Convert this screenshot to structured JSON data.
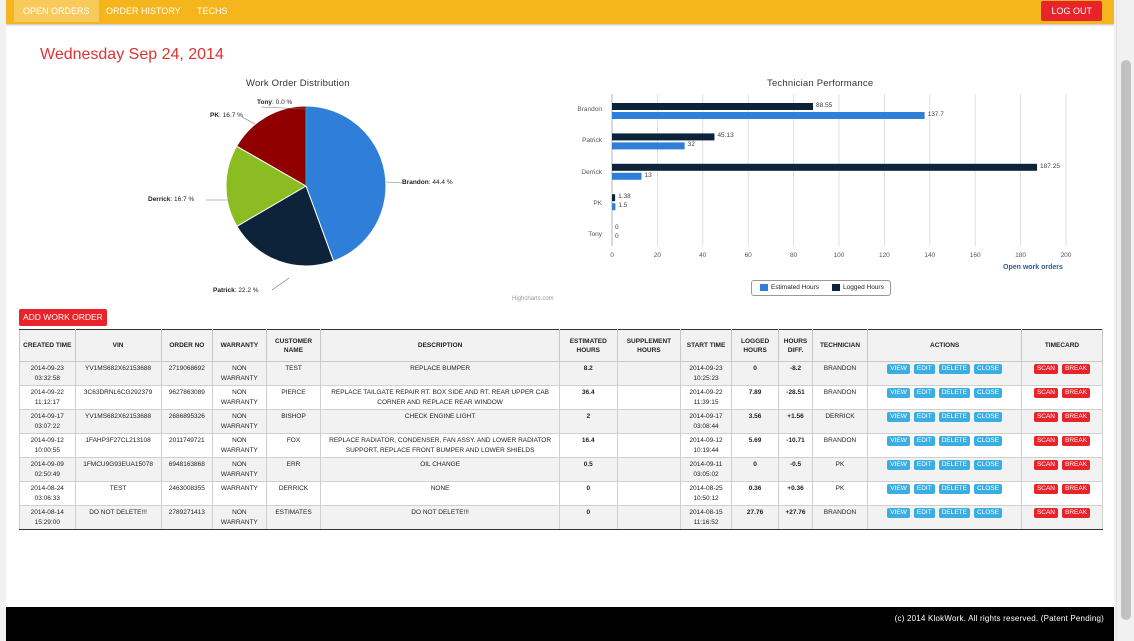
{
  "nav": {
    "tabs": [
      "OPEN ORDERS",
      "ORDER HISTORY",
      "TECHS"
    ],
    "logout": "LOG OUT"
  },
  "date": "Wednesday Sep 24, 2014",
  "pie": {
    "title": "Work Order Distribution",
    "slices": [
      {
        "name": "Brandon",
        "pct": 44.4,
        "label": "44.4 %",
        "color": "#2f7ed8"
      },
      {
        "name": "Patrick",
        "pct": 22.2,
        "label": "22.2 %",
        "color": "#0d233a"
      },
      {
        "name": "Derrick",
        "pct": 16.7,
        "label": "16.7 %",
        "color": "#8bbc21"
      },
      {
        "name": "PK",
        "pct": 16.7,
        "label": "16.7 %",
        "color": "#910000"
      },
      {
        "name": "Tony",
        "pct": 0.0,
        "label": "0.0 %",
        "color": "#1aadce"
      }
    ]
  },
  "chart_data": {
    "type": "bar",
    "title": "Technician Performance",
    "categories": [
      "Brandon",
      "Patrick",
      "Derrick",
      "PK",
      "Tony"
    ],
    "series": [
      {
        "name": "Logged Hours",
        "color": "#0d233a",
        "values": [
          88.55,
          45.13,
          187.25,
          1.38,
          0
        ]
      },
      {
        "name": "Estimated Hours",
        "color": "#2f7ed8",
        "values": [
          137.7,
          32,
          13,
          1.5,
          0
        ]
      }
    ],
    "value_labels": [
      [
        "88.55",
        "45.13",
        "187.25",
        "1.38",
        "0"
      ],
      [
        "137.7",
        "32",
        "13",
        "1.5",
        "0"
      ]
    ],
    "xticks": [
      "0",
      "20",
      "40",
      "60",
      "80",
      "100",
      "120",
      "140",
      "160",
      "180",
      "200"
    ],
    "xlim": [
      0,
      200
    ],
    "grid": true,
    "legend": "bottom-center",
    "legend_items": [
      "Estimated Hours",
      "Logged Hours"
    ],
    "subtitle_link": "Open work orders"
  },
  "credits": "Highcharts.com",
  "add_button": "ADD WORK ORDER",
  "table": {
    "headers": [
      "CREATED TIME",
      "VIN",
      "ORDER NO",
      "WARRANTY",
      "CUSTOMER NAME",
      "DESCRIPTION",
      "ESTIMATED HOURS",
      "SUPPLEMENT HOURS",
      "START TIME",
      "LOGGED HOURS",
      "HOURS DIFF.",
      "TECHNICIAN",
      "ACTIONS",
      "TIMECARD"
    ],
    "actions": [
      "VIEW",
      "EDIT",
      "DELETE",
      "CLOSE"
    ],
    "timecard": [
      "SCAN",
      "BREAK"
    ],
    "rows": [
      {
        "created": "2014-09-23 03:32:58",
        "vin": "YV1MS682X62153688",
        "order": "2719068692",
        "warranty": "NON WARRANTY",
        "customer": "TEST",
        "desc": "REPLACE BUMPER",
        "est": "8.2",
        "supp": "",
        "start": "2014-09-23 10:25:23",
        "logged": "0",
        "diff": "-8.2",
        "diff_type": "neg",
        "tech": "BRANDON"
      },
      {
        "created": "2014-09-22 11:12:17",
        "vin": "3C63DRNL6CG292379",
        "order": "9627863089",
        "warranty": "NON WARRANTY",
        "customer": "PIERCE",
        "desc": "REPLACE TAILGATE REPAIR RT. BOX SIDE AND RT. REAR UPPER CAB CORNER AND REPLACE REAR WINDOW",
        "est": "36.4",
        "supp": "",
        "start": "2014-09-22 11:39:15",
        "logged": "7.89",
        "diff": "-28.51",
        "diff_type": "neg",
        "tech": "BRANDON"
      },
      {
        "created": "2014-09-17 03:07:22",
        "vin": "YV1MS682X62153688",
        "order": "2686895326",
        "warranty": "NON WARRANTY",
        "customer": "BISHOP",
        "desc": "CHECK ENGINE LIGHT",
        "est": "2",
        "supp": "",
        "start": "2014-09-17 03:08:44",
        "logged": "3.56",
        "diff": "+1.56",
        "diff_type": "pos",
        "tech": "DERRICK"
      },
      {
        "created": "2014-09-12 10:00:55",
        "vin": "1FAHP3F27CL213108",
        "order": "2011749721",
        "warranty": "NON WARRANTY",
        "customer": "FOX",
        "desc": "REPLACE RADIATOR, CONDENSER, FAN ASSY. AND LOWER RADIATOR SUPPORT, REPLACE FRONT BUMPER AND LOWER SHIELDS",
        "est": "16.4",
        "supp": "",
        "start": "2014-09-12 10:19:44",
        "logged": "5.69",
        "diff": "-10.71",
        "diff_type": "neg",
        "tech": "BRANDON"
      },
      {
        "created": "2014-09-09 02:50:49",
        "vin": "1FMCU9G93EUA15078",
        "order": "6948163868",
        "warranty": "NON WARRANTY",
        "customer": "ERR",
        "desc": "OIL CHANGE",
        "est": "0.5",
        "supp": "",
        "start": "2014-09-11 03:05:02",
        "logged": "0",
        "diff": "-0.5",
        "diff_type": "neg",
        "tech": "PK"
      },
      {
        "created": "2014-08-24 03:06:33",
        "vin": "TEST",
        "order": "2463008355",
        "warranty": "WARRANTY",
        "customer": "DERRICK",
        "desc": "NONE",
        "est": "0",
        "supp": "",
        "start": "2014-08-25 10:50:12",
        "logged": "0.36",
        "diff": "+0.36",
        "diff_type": "pos",
        "tech": "PK"
      },
      {
        "created": "2014-08-14 15:29:00",
        "vin": "DO NOT DELETE!!!",
        "order": "2789271413",
        "warranty": "NON WARRANTY",
        "customer": "ESTIMATES",
        "desc": "DO NOT DELETE!!!",
        "est": "0",
        "supp": "",
        "start": "2014-08-15 11:16:52",
        "logged": "27.76",
        "diff": "+27.76",
        "diff_type": "pos",
        "tech": "BRANDON"
      }
    ]
  },
  "footer": "(c) 2014 KlokWork. All rights reserved. (Patent Pending)"
}
